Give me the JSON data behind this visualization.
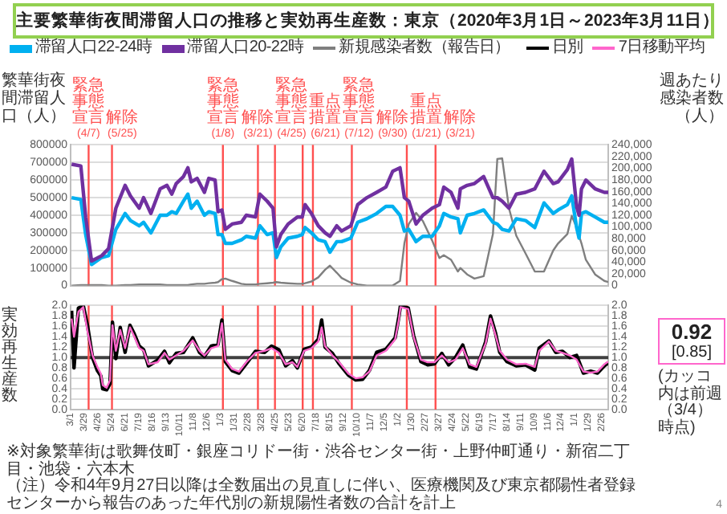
{
  "chart_data": [
    {
      "type": "line",
      "title": "主要繁華街夜間滞留人口の推移と実効再生産数：東京（2020年3月1日～2023年3月11日）",
      "ylabel": "繁華街夜間滞留人口（人）",
      "y2label": "週あたり感染者数（人）",
      "x": [
        "2020-03-03",
        "2020-03-22",
        "2020-04-01",
        "2020-04-13",
        "2020-05-04",
        "2020-05-18",
        "2020-06-02",
        "2020-06-21",
        "2020-07-02",
        "2020-07-20",
        "2020-07-29",
        "2020-08-13",
        "2020-09-01",
        "2020-09-15",
        "2020-09-25",
        "2020-10-04",
        "2020-10-19",
        "2020-10-28",
        "2020-11-04",
        "2020-11-16",
        "2020-12-01",
        "2020-12-10",
        "2020-12-23",
        "2020-12-29",
        "2021-01-06",
        "2021-01-13",
        "2021-01-27",
        "2021-02-15",
        "2021-02-25",
        "2021-03-16",
        "2021-03-25",
        "2021-04-09",
        "2021-04-21",
        "2021-04-28",
        "2021-05-07",
        "2021-05-22",
        "2021-06-10",
        "2021-06-20",
        "2021-06-26",
        "2021-07-09",
        "2021-07-23",
        "2021-08-06",
        "2021-08-16",
        "2021-08-30",
        "2021-09-09",
        "2021-09-28",
        "2021-10-12",
        "2021-10-31",
        "2021-11-20",
        "2021-12-09",
        "2021-12-23",
        "2022-01-07",
        "2022-01-16",
        "2022-01-25",
        "2022-02-09",
        "2022-02-23",
        "2022-03-14",
        "2022-03-29",
        "2022-04-07",
        "2022-04-22",
        "2022-05-06",
        "2022-05-11",
        "2022-05-25",
        "2022-06-09",
        "2022-06-28",
        "2022-07-17",
        "2022-07-26",
        "2022-08-05",
        "2022-08-19",
        "2022-09-03",
        "2022-09-22",
        "2022-10-11",
        "2022-10-30",
        "2022-11-18",
        "2022-11-28",
        "2022-12-17",
        "2022-12-26",
        "2023-01-05",
        "2023-01-10",
        "2023-01-15",
        "2023-01-24",
        "2023-02-12",
        "2023-03-03",
        "2023-03-11"
      ],
      "series": [
        {
          "name": "滞留人口22-24時",
          "color": "#00b0f0",
          "values": [
            500000,
            490000,
            290000,
            120000,
            160000,
            170000,
            320000,
            410000,
            370000,
            340000,
            360000,
            300000,
            400000,
            400000,
            420000,
            410000,
            480000,
            520000,
            440000,
            480000,
            400000,
            420000,
            410000,
            290000,
            290000,
            240000,
            240000,
            260000,
            280000,
            270000,
            340000,
            290000,
            300000,
            160000,
            220000,
            270000,
            280000,
            290000,
            330000,
            300000,
            260000,
            250000,
            190000,
            250000,
            250000,
            270000,
            360000,
            380000,
            410000,
            450000,
            450000,
            400000,
            310000,
            320000,
            250000,
            280000,
            280000,
            340000,
            410000,
            390000,
            380000,
            300000,
            400000,
            410000,
            430000,
            360000,
            350000,
            320000,
            310000,
            380000,
            370000,
            330000,
            470000,
            410000,
            430000,
            460000,
            510000,
            330000,
            270000,
            410000,
            420000,
            390000,
            360000,
            360000
          ]
        },
        {
          "name": "滞留人口20-22時",
          "color": "#7030a0",
          "values": [
            690000,
            680000,
            390000,
            140000,
            170000,
            210000,
            440000,
            570000,
            510000,
            440000,
            500000,
            410000,
            550000,
            570000,
            520000,
            580000,
            620000,
            670000,
            590000,
            610000,
            530000,
            610000,
            600000,
            420000,
            430000,
            320000,
            350000,
            360000,
            400000,
            390000,
            520000,
            480000,
            440000,
            220000,
            290000,
            350000,
            390000,
            390000,
            460000,
            410000,
            340000,
            300000,
            280000,
            340000,
            310000,
            340000,
            460000,
            500000,
            530000,
            560000,
            650000,
            670000,
            500000,
            480000,
            350000,
            400000,
            440000,
            460000,
            560000,
            530000,
            440000,
            550000,
            570000,
            580000,
            620000,
            500000,
            500000,
            480000,
            440000,
            520000,
            530000,
            550000,
            650000,
            580000,
            590000,
            660000,
            720000,
            450000,
            400000,
            550000,
            600000,
            550000,
            530000,
            530000
          ]
        },
        {
          "name": "新規感染者数（報告日）",
          "color": "#7f7f7f",
          "axis": "y2",
          "values": [
            0,
            1000,
            1000,
            1000,
            1000,
            0,
            0,
            1000,
            1000,
            2000,
            2000,
            2000,
            2000,
            1000,
            1000,
            1000,
            1000,
            1000,
            2000,
            3000,
            3000,
            4000,
            5000,
            6000,
            11000,
            12000,
            8000,
            3000,
            2000,
            2000,
            3000,
            4000,
            5000,
            6000,
            5000,
            4000,
            3000,
            3000,
            4000,
            7000,
            14000,
            27000,
            34000,
            22000,
            13000,
            5000,
            2000,
            0,
            0,
            0,
            0,
            8000,
            72000,
            105000,
            124000,
            110000,
            77000,
            47000,
            52000,
            44000,
            24000,
            30000,
            19000,
            12000,
            16000,
            88000,
            216000,
            217000,
            132000,
            85000,
            55000,
            24000,
            24000,
            60000,
            72000,
            88000,
            119000,
            99000,
            85000,
            72000,
            44000,
            19000,
            8000,
            6000
          ]
        }
      ],
      "xlim": [
        "2020-03-01",
        "2023-03-11"
      ],
      "ylim": [
        0,
        800000
      ],
      "yticks": [
        0,
        100000,
        200000,
        300000,
        400000,
        500000,
        600000,
        700000,
        800000
      ],
      "y2lim": [
        0,
        240000
      ],
      "y2ticks": [
        {
          "value": 0,
          "label": "0"
        },
        {
          "value": 20000,
          "label": "20,000"
        },
        {
          "value": 40000,
          "label": "40,000"
        },
        {
          "value": 60000,
          "label": "60,000"
        },
        {
          "value": 80000,
          "label": "80,000"
        },
        {
          "value": 100000,
          "label": "100,000"
        },
        {
          "value": 120000,
          "label": "120,000"
        },
        {
          "value": 140000,
          "label": "140,000"
        },
        {
          "value": 160000,
          "label": "160,000"
        },
        {
          "value": 180000,
          "label": "180,000"
        },
        {
          "value": 200000,
          "label": "200,000"
        },
        {
          "value": 220000,
          "label": "220,000"
        },
        {
          "value": 240000,
          "label": "240,000"
        }
      ],
      "ref_lines": [
        {
          "axis": "x",
          "value": "2020-04-07",
          "label": "緊急事態宣言(4/7)",
          "color": "#ff5050"
        },
        {
          "axis": "x",
          "value": "2020-05-25",
          "label": "解除(5/25)",
          "color": "#ff5050"
        },
        {
          "axis": "x",
          "value": "2021-01-08",
          "label": "緊急事態宣言(1/8)",
          "color": "#ff5050"
        },
        {
          "axis": "x",
          "value": "2021-03-21",
          "label": "解除(3/21)",
          "color": "#ff5050"
        },
        {
          "axis": "x",
          "value": "2021-04-25",
          "label": "緊急事態宣言(4/25)",
          "color": "#ff5050"
        },
        {
          "axis": "x",
          "value": "2021-06-21",
          "label": "重点措置(6/21)",
          "color": "#ff5050"
        },
        {
          "axis": "x",
          "value": "2021-07-12",
          "label": "緊急事態宣言(7/12)",
          "color": "#ff5050"
        },
        {
          "axis": "x",
          "value": "2021-09-30",
          "label": "解除(9/30)",
          "color": "#ff5050"
        },
        {
          "axis": "x",
          "value": "2022-01-21",
          "label": "重点措置(1/21)",
          "color": "#ff5050"
        },
        {
          "axis": "x",
          "value": "2022-03-21",
          "label": "解除(3/21)",
          "color": "#ff5050"
        }
      ],
      "grid": "y",
      "legend": "top",
      "tick_labels": "y"
    },
    {
      "type": "line",
      "ylabel": "実効再生産数",
      "x": [
        "2020-03-03",
        "2020-03-08",
        "2020-03-17",
        "2020-03-27",
        "2020-04-05",
        "2020-04-15",
        "2020-04-25",
        "2020-05-02",
        "2020-05-06",
        "2020-05-14",
        "2020-05-21",
        "2020-05-26",
        "2020-06-02",
        "2020-06-11",
        "2020-06-21",
        "2020-07-01",
        "2020-07-10",
        "2020-07-20",
        "2020-07-29",
        "2020-08-08",
        "2020-08-27",
        "2020-09-10",
        "2020-09-20",
        "2020-10-04",
        "2020-10-19",
        "2020-11-07",
        "2020-11-21",
        "2020-12-01",
        "2020-12-15",
        "2020-12-29",
        "2021-01-06",
        "2021-01-13",
        "2021-01-27",
        "2021-02-10",
        "2021-02-25",
        "2021-03-16",
        "2021-04-04",
        "2021-04-18",
        "2021-05-03",
        "2021-05-17",
        "2021-05-31",
        "2021-06-10",
        "2021-06-24",
        "2021-07-09",
        "2021-07-23",
        "2021-07-30",
        "2021-08-06",
        "2021-08-21",
        "2021-09-04",
        "2021-09-23",
        "2021-10-08",
        "2021-10-22",
        "2021-11-05",
        "2021-11-20",
        "2021-12-09",
        "2021-12-28",
        "2022-01-05",
        "2022-01-08",
        "2022-01-24",
        "2022-02-04",
        "2022-02-19",
        "2022-03-05",
        "2022-03-19",
        "2022-04-03",
        "2022-04-17",
        "2022-05-01",
        "2022-05-16",
        "2022-05-30",
        "2022-06-13",
        "2022-07-02",
        "2022-07-12",
        "2022-07-22",
        "2022-07-31",
        "2022-08-15",
        "2022-09-03",
        "2022-09-22",
        "2022-10-11",
        "2022-10-20",
        "2022-11-09",
        "2022-11-23",
        "2022-12-07",
        "2022-12-22",
        "2023-01-05",
        "2023-01-19",
        "2023-02-03",
        "2023-02-17",
        "2023-03-03",
        "2023-03-11"
      ],
      "series": [
        {
          "name": "日別",
          "color": "#000000",
          "values": [
            1.9,
            0.8,
            1.95,
            2.0,
            1.6,
            1.0,
            0.75,
            0.65,
            0.4,
            0.38,
            0.5,
            1.68,
            0.98,
            1.58,
            1.1,
            1.62,
            1.45,
            1.22,
            1.15,
            0.84,
            0.95,
            1.12,
            0.9,
            1.08,
            1.1,
            1.38,
            1.1,
            1.02,
            1.22,
            1.25,
            1.72,
            0.92,
            0.75,
            0.7,
            0.88,
            1.12,
            1.1,
            1.22,
            1.15,
            0.84,
            0.94,
            0.8,
            1.16,
            1.2,
            1.35,
            1.72,
            1.2,
            1.08,
            0.88,
            0.66,
            0.57,
            0.58,
            0.75,
            1.1,
            1.16,
            1.38,
            1.8,
            2.0,
            1.95,
            1.42,
            0.92,
            0.86,
            0.88,
            1.08,
            0.86,
            1.0,
            1.24,
            0.82,
            0.78,
            1.3,
            1.8,
            1.48,
            1.1,
            0.92,
            0.84,
            0.86,
            0.76,
            1.18,
            1.32,
            1.1,
            1.12,
            1.0,
            1.04,
            0.7,
            0.74,
            0.7,
            0.84,
            0.9
          ]
        },
        {
          "name": "7日移動平均",
          "color": "#ff66cc",
          "values": [
            1.75,
            1.4,
            1.88,
            1.97,
            1.49,
            1.04,
            0.82,
            0.69,
            0.47,
            0.42,
            0.56,
            1.62,
            1.13,
            1.53,
            1.18,
            1.58,
            1.4,
            1.18,
            1.13,
            0.87,
            0.91,
            1.09,
            0.96,
            1.04,
            1.13,
            1.33,
            1.13,
            1.04,
            1.18,
            1.22,
            1.66,
            0.96,
            0.78,
            0.73,
            0.91,
            1.09,
            1.13,
            1.18,
            1.09,
            0.87,
            0.91,
            0.82,
            1.13,
            1.18,
            1.31,
            1.58,
            1.22,
            1.04,
            0.91,
            0.69,
            0.6,
            0.62,
            0.73,
            1.04,
            1.13,
            1.35,
            1.75,
            1.97,
            1.93,
            1.4,
            0.96,
            0.91,
            0.91,
            1.04,
            0.91,
            0.96,
            1.18,
            0.87,
            0.82,
            1.27,
            1.75,
            1.44,
            1.13,
            0.96,
            0.87,
            0.88,
            0.82,
            1.13,
            1.31,
            1.13,
            1.09,
            1.04,
            0.96,
            0.73,
            0.71,
            0.73,
            0.87,
            0.92
          ]
        }
      ],
      "xlim": [
        "2020-03-01",
        "2023-03-11"
      ],
      "xticks": [
        {
          "value": "2020-03-01",
          "label": "3/1"
        },
        {
          "value": "2020-03-29",
          "label": "3/29"
        },
        {
          "value": "2020-04-26",
          "label": "4/26"
        },
        {
          "value": "2020-05-24",
          "label": "5/24"
        },
        {
          "value": "2020-06-21",
          "label": "6/21"
        },
        {
          "value": "2020-07-19",
          "label": "7/19"
        },
        {
          "value": "2020-08-16",
          "label": "8/16"
        },
        {
          "value": "2020-09-13",
          "label": "9/13"
        },
        {
          "value": "2020-10-11",
          "label": "10/11"
        },
        {
          "value": "2020-11-08",
          "label": "11/8"
        },
        {
          "value": "2020-12-06",
          "label": "12/6"
        },
        {
          "value": "2021-01-03",
          "label": "1/3"
        },
        {
          "value": "2021-01-31",
          "label": "1/31"
        },
        {
          "value": "2021-02-28",
          "label": "2/28"
        },
        {
          "value": "2021-03-28",
          "label": "3/28"
        },
        {
          "value": "2021-04-25",
          "label": "4/25"
        },
        {
          "value": "2021-05-23",
          "label": "5/23"
        },
        {
          "value": "2021-06-20",
          "label": "6/20"
        },
        {
          "value": "2021-07-18",
          "label": "7/18"
        },
        {
          "value": "2021-08-15",
          "label": "8/15"
        },
        {
          "value": "2021-09-12",
          "label": "9/12"
        },
        {
          "value": "2021-10-10",
          "label": "10/10"
        },
        {
          "value": "2021-11-07",
          "label": "11/7"
        },
        {
          "value": "2021-12-05",
          "label": "12/5"
        },
        {
          "value": "2022-01-02",
          "label": "1/2"
        },
        {
          "value": "2022-01-30",
          "label": "1/30"
        },
        {
          "value": "2022-02-27",
          "label": "2/27"
        },
        {
          "value": "2022-03-27",
          "label": "3/27"
        },
        {
          "value": "2022-04-24",
          "label": "4/24"
        },
        {
          "value": "2022-05-22",
          "label": "5/22"
        },
        {
          "value": "2022-06-19",
          "label": "6/19"
        },
        {
          "value": "2022-07-17",
          "label": "7/17"
        },
        {
          "value": "2022-08-14",
          "label": "8/14"
        },
        {
          "value": "2022-09-11",
          "label": "9/11"
        },
        {
          "value": "2022-10-09",
          "label": "10/9"
        },
        {
          "value": "2022-11-06",
          "label": "11/6"
        },
        {
          "value": "2022-12-04",
          "label": "12/4"
        },
        {
          "value": "2023-01-01",
          "label": "1/1"
        },
        {
          "value": "2023-01-29",
          "label": "1/29"
        },
        {
          "value": "2023-02-26",
          "label": "2/26"
        }
      ],
      "ylim": [
        0,
        2
      ],
      "yticks": [
        {
          "value": 0,
          "label": "0.0"
        },
        {
          "value": 0.2,
          "label": "0.2"
        },
        {
          "value": 0.4,
          "label": "0.4"
        },
        {
          "value": 0.6,
          "label": "0.6"
        },
        {
          "value": 0.8,
          "label": "0.8"
        },
        {
          "value": 1,
          "label": "1.0"
        },
        {
          "value": 1.2,
          "label": "1.2"
        },
        {
          "value": 1.4,
          "label": "1.4"
        },
        {
          "value": 1.6,
          "label": "1.6"
        },
        {
          "value": 1.8,
          "label": "1.8"
        },
        {
          "value": 2,
          "label": "2.0"
        }
      ],
      "y2lim": [
        0,
        2
      ],
      "y2ticks": [
        {
          "value": 0,
          "label": "0.0"
        },
        {
          "value": 0.2,
          "label": "0.2"
        },
        {
          "value": 0.4,
          "label": "0.4"
        },
        {
          "value": 0.6,
          "label": "0.6"
        },
        {
          "value": 0.8,
          "label": "0.8"
        },
        {
          "value": 1,
          "label": "1.0"
        },
        {
          "value": 1.2,
          "label": "1.2"
        },
        {
          "value": 1.4,
          "label": "1.4"
        },
        {
          "value": 1.6,
          "label": "1.6"
        },
        {
          "value": 1.8,
          "label": "1.8"
        },
        {
          "value": 2,
          "label": "2.0"
        }
      ],
      "ref_lines": [
        {
          "axis": "y",
          "value": 1,
          "color": "#404040"
        },
        {
          "axis": "x",
          "value": "2020-04-07",
          "color": "#ff5050"
        },
        {
          "axis": "x",
          "value": "2020-05-25",
          "color": "#ff5050"
        },
        {
          "axis": "x",
          "value": "2021-01-08",
          "color": "#ff5050"
        },
        {
          "axis": "x",
          "value": "2021-03-21",
          "color": "#ff5050"
        },
        {
          "axis": "x",
          "value": "2021-04-25",
          "color": "#ff5050"
        },
        {
          "axis": "x",
          "value": "2021-06-21",
          "color": "#ff5050"
        },
        {
          "axis": "x",
          "value": "2021-07-12",
          "color": "#ff5050"
        },
        {
          "axis": "x",
          "value": "2021-09-30",
          "color": "#ff5050"
        },
        {
          "axis": "x",
          "value": "2022-01-21",
          "color": "#ff5050"
        },
        {
          "axis": "x",
          "value": "2022-03-21",
          "color": "#ff5050"
        }
      ],
      "annotations": [
        "0.92",
        "[0.85]",
        "(カッコ内は前週（3/4）時点)",
        "※対象繁華街は歌舞伎町・銀座コリドー街・渋谷センター街・上野仲町通り・新宿二丁目・池袋・六本木",
        "（注）令和4年9月27日以降は全数届出の見直しに伴い、医療機関及び東京都陽性者登録センターから報告のあった年代別の新規陽性者数の合計を計上",
        "4"
      ],
      "grid": "y",
      "legend": "top"
    }
  ]
}
